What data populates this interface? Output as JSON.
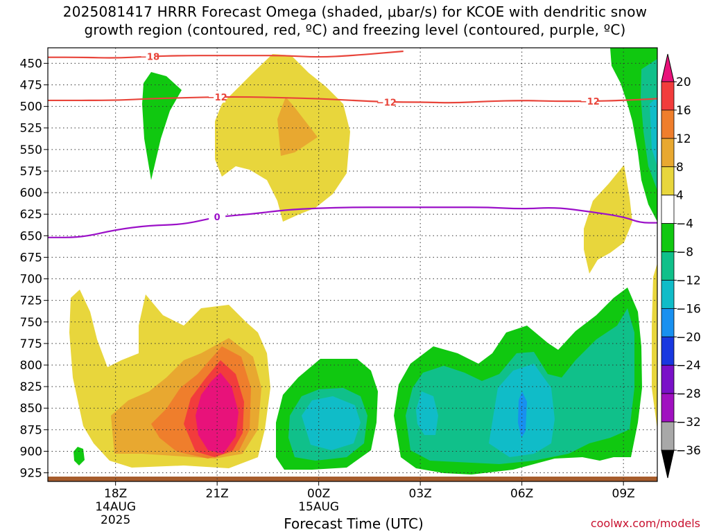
{
  "title": {
    "line1": "2025081417 HRRR Forecast Omega (shaded, μbar/s) for KCOE with dendritic snow",
    "line2": "growth region (contoured, red, ºC) and freezing level (contoured, purple, ºC)"
  },
  "chart_data": {
    "type": "contour",
    "title": "2025081417 HRRR Forecast Omega (shaded, μbar/s) for KCOE with dendritic snow growth region (contoured, red, ºC) and freezing level (contoured, purple, ºC)",
    "xlabel": "Forecast Time (UTC)",
    "ylabel": "",
    "y_axis": {
      "inverted": true,
      "ylim": [
        935,
        432
      ],
      "ticks": [
        450,
        475,
        500,
        525,
        550,
        575,
        600,
        625,
        650,
        675,
        700,
        725,
        750,
        775,
        800,
        825,
        850,
        875,
        900,
        925
      ]
    },
    "x_axis": {
      "xlim_hours": [
        -1,
        17
      ],
      "ticks": [
        {
          "h": 1,
          "lines": [
            "18Z",
            "14AUG",
            "2025"
          ]
        },
        {
          "h": 4,
          "lines": [
            "21Z"
          ]
        },
        {
          "h": 7,
          "lines": [
            "00Z",
            "15AUG"
          ]
        },
        {
          "h": 10,
          "lines": [
            "03Z"
          ]
        },
        {
          "h": 13,
          "lines": [
            "06Z"
          ]
        },
        {
          "h": 16,
          "lines": [
            "09Z"
          ]
        }
      ]
    },
    "grid": "dotted",
    "colorbar": {
      "labels": [
        20,
        16,
        12,
        8,
        4,
        -4,
        -8,
        -12,
        -16,
        -20,
        -24,
        -28,
        -32,
        -36
      ],
      "bins": [
        {
          "range": ">20",
          "color": "#e8127a"
        },
        {
          "range": "16 to 20",
          "color": "#f23c3c"
        },
        {
          "range": "12 to 16",
          "color": "#ef7e2c"
        },
        {
          "range": "8 to 12",
          "color": "#e8a830"
        },
        {
          "range": "4 to 8",
          "color": "#e8d63c"
        },
        {
          "range": "-4 to 4",
          "color": "#ffffff"
        },
        {
          "range": "-8 to -4",
          "color": "#10c810"
        },
        {
          "range": "-12 to -8",
          "color": "#10c08a"
        },
        {
          "range": "-16 to -12",
          "color": "#10bcc8"
        },
        {
          "range": "-20 to -16",
          "color": "#1890f0"
        },
        {
          "range": "-24 to -20",
          "color": "#1838e0"
        },
        {
          "range": "-28 to -24",
          "color": "#7a10c8"
        },
        {
          "range": "-32 to -28",
          "color": "#a010c0"
        },
        {
          "range": "-36 to -32",
          "color": "#a8a8a8"
        },
        {
          "range": "<-36",
          "color": "#000000"
        }
      ]
    },
    "contours": [
      {
        "name": "-18 ºC isotherm",
        "label": "-18",
        "color": "#e8443a",
        "points": [
          [
            -1,
            443
          ],
          [
            0,
            443
          ],
          [
            1,
            444
          ],
          [
            2,
            442
          ],
          [
            3,
            441
          ],
          [
            4,
            441
          ],
          [
            5,
            441
          ],
          [
            6,
            441
          ],
          [
            7,
            443
          ],
          [
            8,
            441
          ],
          [
            9.5,
            436
          ]
        ]
      },
      {
        "name": "-12 ºC isotherm",
        "label": "-12",
        "color": "#e8443a",
        "points": [
          [
            -1,
            493
          ],
          [
            1,
            493
          ],
          [
            2,
            491
          ],
          [
            3,
            490
          ],
          [
            4,
            489
          ],
          [
            5,
            489
          ],
          [
            6,
            490
          ],
          [
            7,
            491
          ],
          [
            8,
            493
          ],
          [
            9,
            495
          ],
          [
            10,
            495
          ],
          [
            11,
            496
          ],
          [
            12,
            494
          ],
          [
            13,
            493
          ],
          [
            14,
            494
          ],
          [
            15,
            494
          ],
          [
            16,
            493
          ],
          [
            17,
            491
          ]
        ]
      },
      {
        "name": "0 ºC freezing level",
        "label": "0",
        "color": "#9b10c8",
        "points": [
          [
            -1,
            652
          ],
          [
            0,
            652
          ],
          [
            1,
            643
          ],
          [
            2,
            638
          ],
          [
            3,
            637
          ],
          [
            4,
            628
          ],
          [
            5,
            625
          ],
          [
            6,
            620
          ],
          [
            7,
            618
          ],
          [
            8,
            617
          ],
          [
            9,
            617
          ],
          [
            10,
            617
          ],
          [
            11,
            617
          ],
          [
            12,
            617
          ],
          [
            13,
            619
          ],
          [
            14,
            617
          ],
          [
            15,
            622
          ],
          [
            16,
            628
          ],
          [
            16.5,
            635
          ],
          [
            17,
            635
          ]
        ]
      }
    ]
  },
  "axes": {
    "xlabel": "Forecast Time (UTC)"
  },
  "colorbar_labels": [
    "20",
    "16",
    "12",
    "8",
    "4",
    "−4",
    "−8",
    "−12",
    "−16",
    "−20",
    "−24",
    "−28",
    "−32",
    "−36"
  ],
  "credit": "coolwx.com/models"
}
